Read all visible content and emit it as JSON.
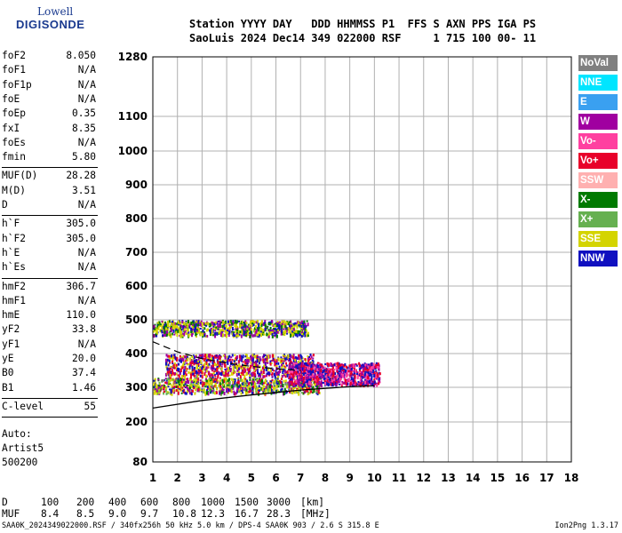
{
  "logo": {
    "top": "Lowell",
    "bottom": "DIGISONDE"
  },
  "header": {
    "line1": "Station YYYY DAY   DDD HHMMSS P1  FFS S AXN PPS IGA PS",
    "line2": "SaoLuis 2024 Dec14 349 022000 RSF     1 715 100 00- 11"
  },
  "params": [
    [
      {
        "name": "foF2",
        "value": "8.050"
      },
      {
        "name": "foF1",
        "value": "N/A"
      },
      {
        "name": "foF1p",
        "value": "N/A"
      },
      {
        "name": "foE",
        "value": "N/A"
      },
      {
        "name": "foEp",
        "value": "0.35"
      },
      {
        "name": "fxI",
        "value": "8.35"
      },
      {
        "name": "foEs",
        "value": "N/A"
      },
      {
        "name": "fmin",
        "value": "5.80"
      }
    ],
    [
      {
        "name": "MUF(D)",
        "value": "28.28"
      },
      {
        "name": "M(D)",
        "value": "3.51"
      },
      {
        "name": "D",
        "value": "N/A"
      }
    ],
    [
      {
        "name": "h`F",
        "value": "305.0"
      },
      {
        "name": "h`F2",
        "value": "305.0"
      },
      {
        "name": "h`E",
        "value": "N/A"
      },
      {
        "name": "h`Es",
        "value": "N/A"
      }
    ],
    [
      {
        "name": "hmF2",
        "value": "306.7"
      },
      {
        "name": "hmF1",
        "value": "N/A"
      },
      {
        "name": "hmE",
        "value": "110.0"
      },
      {
        "name": "yF2",
        "value": "33.8"
      },
      {
        "name": "yF1",
        "value": "N/A"
      },
      {
        "name": "yE",
        "value": "20.0"
      },
      {
        "name": "B0",
        "value": "37.4"
      },
      {
        "name": "B1",
        "value": "1.46"
      }
    ],
    [
      {
        "name": "C-level",
        "value": "55"
      }
    ]
  ],
  "auto": {
    "line1": "Auto:",
    "line2": "Artist5",
    "line3": "500200"
  },
  "legend": [
    {
      "label": "NoVal",
      "bg": "#808080",
      "fg": "#ffffff"
    },
    {
      "label": "NNE",
      "bg": "#00e5ff",
      "fg": "#ffffff"
    },
    {
      "label": "E",
      "bg": "#3aa0f0",
      "fg": "#ffffff"
    },
    {
      "label": "W",
      "bg": "#a000a0",
      "fg": "#ffffff"
    },
    {
      "label": "Vo-",
      "bg": "#ff40a0",
      "fg": "#ffffff"
    },
    {
      "label": "Vo+",
      "bg": "#e8002a",
      "fg": "#ffffff"
    },
    {
      "label": "SSW",
      "bg": "#ffb0b0",
      "fg": "#ffffff"
    },
    {
      "label": "X-",
      "bg": "#007a00",
      "fg": "#ffffff"
    },
    {
      "label": "X+",
      "bg": "#66b050",
      "fg": "#ffffff"
    },
    {
      "label": "SSE",
      "bg": "#d4d400",
      "fg": "#ffffff"
    },
    {
      "label": "NNW",
      "bg": "#1010c0",
      "fg": "#ffffff"
    }
  ],
  "footer": {
    "d_label": "D",
    "d_values": [
      "100",
      "200",
      "400",
      "600",
      "800",
      "1000",
      "1500",
      "3000",
      "[km]"
    ],
    "muf_label": "MUF",
    "muf_values": [
      "8.4",
      "8.5",
      "9.0",
      "9.7",
      "10.8",
      "12.3",
      "16.7",
      "28.3",
      "[MHz]"
    ],
    "source": "SAA0K_2024349022000.RSF / 340fx256h 50 kHz 5.0 km / DPS-4 SAA0K 903 / 2.6 S 315.8 E",
    "version": "Ion2Png 1.3.17"
  },
  "chart_data": {
    "type": "scatter",
    "title": "",
    "xlabel": "",
    "ylabel": "",
    "xlim": [
      1,
      18
    ],
    "ylim": [
      80,
      1280
    ],
    "x_ticks": [
      1,
      2,
      3,
      4,
      5,
      6,
      7,
      8,
      9,
      10,
      11,
      12,
      13,
      14,
      15,
      16,
      17,
      18
    ],
    "y_ticks": [
      80,
      200,
      300,
      400,
      500,
      600,
      700,
      800,
      900,
      1000,
      1100,
      1280
    ],
    "y_scale": "nonlinear-virtual-height",
    "grid": true,
    "traces": [
      {
        "name": "F2 trace",
        "mode": "band",
        "x_range": [
          1.0,
          7.3
        ],
        "y_range": [
          455,
          500
        ],
        "colors": [
          "#d4d400",
          "#d4d400",
          "#1010c0",
          "#a000a0",
          "#007a00"
        ]
      },
      {
        "name": "F trace lower",
        "mode": "band",
        "x_range": [
          1.0,
          7.8
        ],
        "y_range": [
          285,
          330
        ],
        "colors": [
          "#d4d400",
          "#d4d400",
          "#1010c0",
          "#a000a0",
          "#e8002a",
          "#007a00",
          "#66b050"
        ]
      },
      {
        "name": "F2 spread",
        "mode": "band",
        "x_range": [
          1.5,
          7.5
        ],
        "y_range": [
          335,
          400
        ],
        "colors": [
          "#d4d400",
          "#1010c0",
          "#a000a0",
          "#e8002a"
        ]
      },
      {
        "name": "F2 upper",
        "mode": "band",
        "x_range": [
          6.5,
          10.2
        ],
        "y_range": [
          310,
          375
        ],
        "colors": [
          "#e8002a",
          "#ff40a0",
          "#a000a0",
          "#1010c0"
        ]
      }
    ],
    "profile_line": {
      "x": [
        1,
        3,
        5,
        7,
        9,
        10
      ],
      "y": [
        240,
        262,
        278,
        292,
        302,
        305
      ]
    },
    "dashed_line": {
      "x": [
        1,
        2,
        3,
        4,
        5,
        6,
        7
      ],
      "y": [
        435,
        405,
        385,
        372,
        362,
        355,
        350
      ]
    }
  }
}
